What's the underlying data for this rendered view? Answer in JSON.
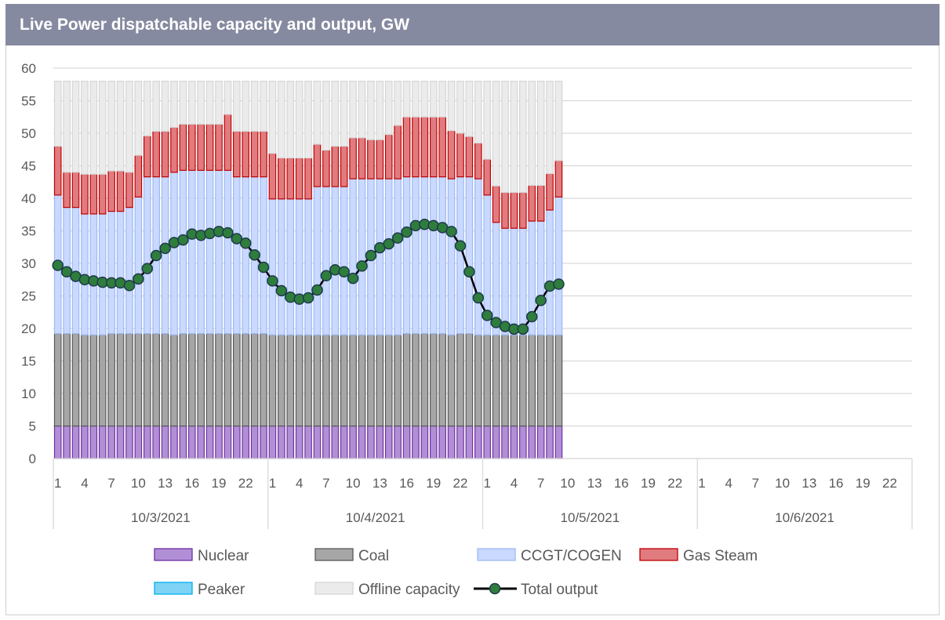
{
  "title": "Live Power dispatchable capacity and output, GW",
  "chart_data": {
    "type": "bar",
    "title": "Live Power dispatchable capacity and output, GW",
    "ylim": [
      0,
      60
    ],
    "yticks": [
      0,
      5,
      10,
      15,
      20,
      25,
      30,
      35,
      40,
      45,
      50,
      55,
      60
    ],
    "days": [
      "10/3/2021",
      "10/4/2021",
      "10/5/2021",
      "10/6/2021"
    ],
    "hour_tick_labels": [
      "1",
      "4",
      "7",
      "10",
      "13",
      "16",
      "19",
      "22"
    ],
    "hours_per_day": 24,
    "grid": true,
    "legend_position": "bottom",
    "series": [
      {
        "name": "Nuclear",
        "kind": "bar",
        "color": "#b18fd6",
        "edge": "#7030a0",
        "values": [
          5,
          5,
          5,
          5,
          5,
          5,
          5,
          5,
          5,
          5,
          5,
          5,
          5,
          5,
          5,
          5,
          5,
          5,
          5,
          5,
          5,
          5,
          5,
          5,
          5,
          5,
          5,
          5,
          5,
          5,
          5,
          5,
          5,
          5,
          5,
          5,
          5,
          5,
          5,
          5,
          5,
          5,
          5,
          5,
          5,
          5,
          5,
          5,
          5,
          5,
          5,
          5,
          5,
          5,
          5,
          5,
          5
        ]
      },
      {
        "name": "Coal",
        "kind": "bar",
        "color": "#a6a6a6",
        "edge": "#595959",
        "values": [
          14.2,
          14.2,
          14.2,
          14.0,
          14.0,
          14.0,
          14.2,
          14.2,
          14.2,
          14.2,
          14.2,
          14.2,
          14.2,
          14.0,
          14.2,
          14.2,
          14.2,
          14.2,
          14.2,
          14.2,
          14.2,
          14.2,
          14.2,
          14.2,
          14.0,
          14.0,
          14.0,
          14.0,
          14.0,
          14.0,
          14.0,
          14.0,
          14.0,
          14.0,
          14.0,
          14.0,
          14.0,
          14.0,
          14.0,
          14.2,
          14.2,
          14.2,
          14.2,
          14.2,
          14.0,
          14.2,
          14.2,
          14.0,
          14.0,
          14.0,
          14.0,
          14.0,
          14.0,
          14.0,
          14.0,
          14.0,
          14.0
        ]
      },
      {
        "name": "CCGT/COGEN",
        "kind": "bar",
        "color": "#c9d9ff",
        "edge": "#9fb9f4",
        "values": [
          21.3,
          19.4,
          19.4,
          18.6,
          18.6,
          18.6,
          18.8,
          18.8,
          19.4,
          21.0,
          24.1,
          24.1,
          24.1,
          25.0,
          25.1,
          25.1,
          25.1,
          25.1,
          25.1,
          25.1,
          24.1,
          24.1,
          24.1,
          24.1,
          20.9,
          20.9,
          20.9,
          20.9,
          20.9,
          22.8,
          22.8,
          22.8,
          22.8,
          24.0,
          24.0,
          24.0,
          24.0,
          24.0,
          24.0,
          24.1,
          24.1,
          24.1,
          24.1,
          24.1,
          24.0,
          24.1,
          24.1,
          24.0,
          21.5,
          17.3,
          16.4,
          16.4,
          16.4,
          17.5,
          17.5,
          19.2,
          21.2
        ]
      },
      {
        "name": "Gas Steam",
        "kind": "bar",
        "color": "#e07b7f",
        "edge": "#c00000",
        "values": [
          7.5,
          5.4,
          5.4,
          6.1,
          6.1,
          6.1,
          6.2,
          6.2,
          5.4,
          6.4,
          6.3,
          7.0,
          7.0,
          6.9,
          7.1,
          7.1,
          7.1,
          7.1,
          7.1,
          8.6,
          7.0,
          7.0,
          7.0,
          7.0,
          7.0,
          6.3,
          6.3,
          6.3,
          6.3,
          6.5,
          5.6,
          6.2,
          6.2,
          6.3,
          6.3,
          6.0,
          6.0,
          6.8,
          8.2,
          9.2,
          9.2,
          9.2,
          9.2,
          9.2,
          7.4,
          6.7,
          6.2,
          5.5,
          5.5,
          5.6,
          5.5,
          5.5,
          5.5,
          5.5,
          5.5,
          5.6,
          5.6
        ]
      },
      {
        "name": "Peaker",
        "kind": "bar",
        "color": "#7fd3f5",
        "edge": "#00b0f0",
        "values": [
          0,
          0,
          0,
          0,
          0,
          0,
          0,
          0,
          0,
          0,
          0,
          0,
          0,
          0,
          0,
          0,
          0,
          0,
          0,
          0,
          0,
          0,
          0,
          0,
          0,
          0,
          0,
          0,
          0,
          0,
          0,
          0,
          0,
          0,
          0,
          0,
          0,
          0,
          0,
          0,
          0,
          0,
          0,
          0,
          0,
          0,
          0,
          0,
          0,
          0,
          0,
          0,
          0,
          0,
          0,
          0,
          0
        ]
      },
      {
        "name": "Offline capacity",
        "kind": "bar",
        "color": "#ebebeb",
        "edge": "#d6d6d6",
        "values": [
          10.0,
          14.0,
          14.0,
          14.3,
          14.3,
          14.3,
          13.8,
          13.8,
          14.0,
          11.4,
          8.4,
          7.7,
          7.7,
          7.1,
          6.6,
          6.6,
          6.6,
          6.6,
          6.6,
          5.1,
          7.7,
          7.7,
          7.7,
          7.7,
          11.1,
          11.8,
          11.8,
          11.8,
          11.8,
          9.7,
          10.6,
          10.0,
          10.0,
          8.7,
          8.7,
          9.0,
          9.0,
          8.2,
          6.8,
          5.5,
          5.5,
          5.5,
          5.5,
          5.5,
          7.6,
          8.0,
          8.5,
          9.5,
          12.0,
          16.1,
          17.1,
          17.1,
          17.1,
          16.0,
          16.0,
          14.2,
          12.2
        ]
      },
      {
        "name": "Total output",
        "kind": "line",
        "color": "#2e7d3c",
        "edge": "#000000",
        "values": [
          29.7,
          28.7,
          28.0,
          27.5,
          27.3,
          27.1,
          27.0,
          27.0,
          26.6,
          27.6,
          29.2,
          31.2,
          32.3,
          33.2,
          33.6,
          34.5,
          34.3,
          34.6,
          34.9,
          34.7,
          33.8,
          33.1,
          31.3,
          29.4,
          27.3,
          25.8,
          24.8,
          24.5,
          24.7,
          25.9,
          28.1,
          29.0,
          28.7,
          27.7,
          29.6,
          31.2,
          32.4,
          33.0,
          33.9,
          34.8,
          35.8,
          36.0,
          35.8,
          35.5,
          34.9,
          32.7,
          28.7,
          24.7,
          22.0,
          20.9,
          20.3,
          19.9,
          19.9,
          21.8,
          24.3,
          26.5,
          26.8
        ]
      }
    ]
  }
}
